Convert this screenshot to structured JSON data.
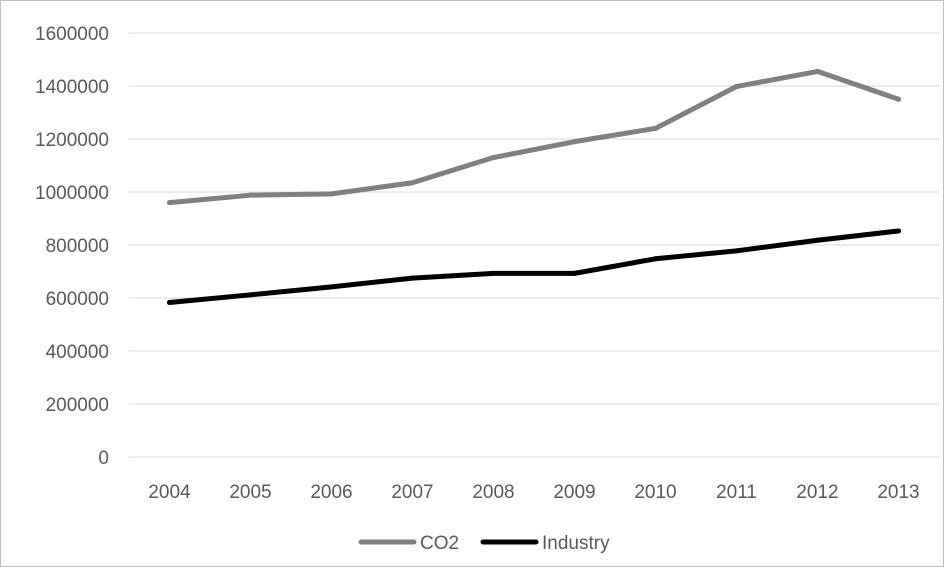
{
  "chart_data": {
    "type": "line",
    "title": "",
    "xlabel": "",
    "ylabel": "",
    "x": [
      "2004",
      "2005",
      "2006",
      "2007",
      "2008",
      "2009",
      "2010",
      "2011",
      "2012",
      "2013"
    ],
    "y_ticks": [
      "0",
      "200000",
      "400000",
      "600000",
      "800000",
      "1000000",
      "1200000",
      "1400000",
      "1600000"
    ],
    "ylim": [
      0,
      1600000
    ],
    "grid": true,
    "legend_position": "bottom",
    "series": [
      {
        "name": "CO2",
        "color": "#808080",
        "values": [
          960000,
          988000,
          993000,
          1035000,
          1130000,
          1190000,
          1240000,
          1398000,
          1455000,
          1350000
        ]
      },
      {
        "name": "Industry",
        "color": "#000000",
        "values": [
          583000,
          612000,
          642000,
          675000,
          693000,
          693000,
          748000,
          778000,
          818000,
          853000
        ]
      }
    ]
  }
}
